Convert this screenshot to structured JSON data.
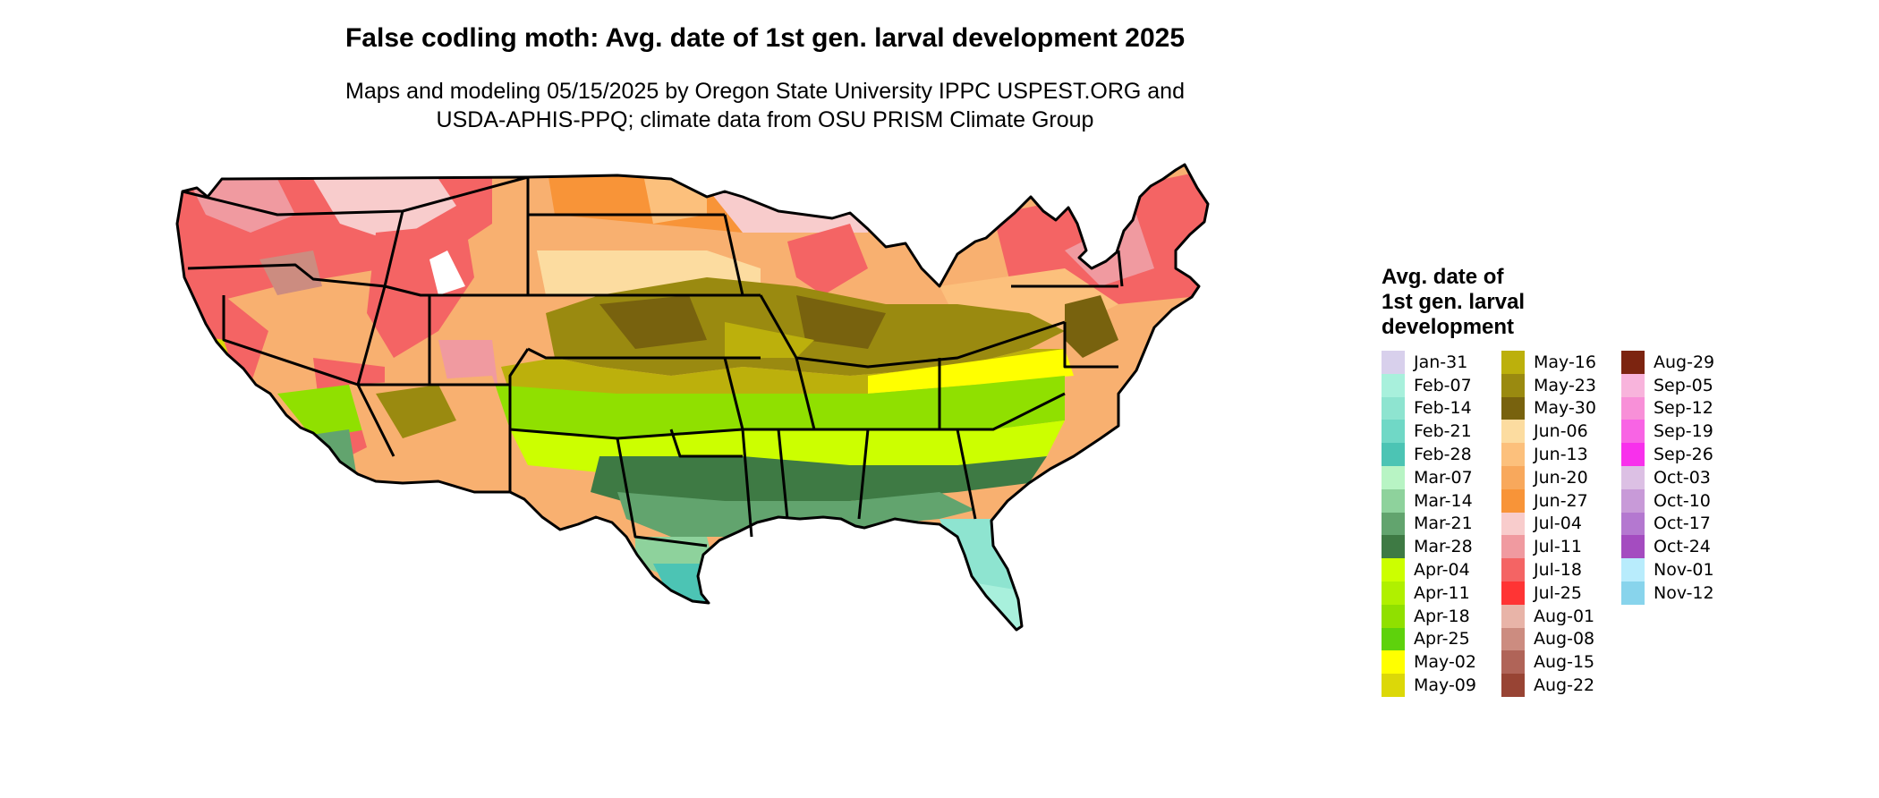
{
  "title": "False codling moth: Avg. date of 1st gen. larval development 2025",
  "subtitle_line1": "Maps and modeling 05/15/2025 by Oregon State University IPPC USPEST.ORG and",
  "subtitle_line2": "USDA-APHIS-PPQ; climate data from OSU PRISM Climate Group",
  "legend": {
    "title_lines": [
      "Avg. date of",
      "1st gen. larval",
      "development"
    ],
    "columns": [
      [
        {
          "label": "Jan-31",
          "color": "#d8d0ec"
        },
        {
          "label": "Feb-07",
          "color": "#a8f0dc"
        },
        {
          "label": "Feb-14",
          "color": "#8ee4d0"
        },
        {
          "label": "Feb-21",
          "color": "#70d8c6"
        },
        {
          "label": "Feb-28",
          "color": "#4cc4b4"
        },
        {
          "label": "Mar-07",
          "color": "#b8f4c4"
        },
        {
          "label": "Mar-14",
          "color": "#8ed29c"
        },
        {
          "label": "Mar-21",
          "color": "#62a46e"
        },
        {
          "label": "Mar-28",
          "color": "#3e7a44"
        },
        {
          "label": "Apr-04",
          "color": "#ccff00"
        },
        {
          "label": "Apr-11",
          "color": "#b0f000"
        },
        {
          "label": "Apr-18",
          "color": "#90e000"
        },
        {
          "label": "Apr-25",
          "color": "#5ed20c"
        },
        {
          "label": "May-02",
          "color": "#ffff00"
        },
        {
          "label": "May-09",
          "color": "#dcd808"
        }
      ],
      [
        {
          "label": "May-16",
          "color": "#bcb00c"
        },
        {
          "label": "May-23",
          "color": "#9a8a10"
        },
        {
          "label": "May-30",
          "color": "#78620e"
        },
        {
          "label": "Jun-06",
          "color": "#fcdca0"
        },
        {
          "label": "Jun-13",
          "color": "#fcc07c"
        },
        {
          "label": "Jun-20",
          "color": "#f8a85c"
        },
        {
          "label": "Jun-27",
          "color": "#f89438"
        },
        {
          "label": "Jul-04",
          "color": "#f8cccc"
        },
        {
          "label": "Jul-11",
          "color": "#f09aa0"
        },
        {
          "label": "Jul-18",
          "color": "#f46464"
        },
        {
          "label": "Jul-25",
          "color": "#ff3434"
        },
        {
          "label": "Aug-01",
          "color": "#e8b4a8"
        },
        {
          "label": "Aug-08",
          "color": "#cc8c80"
        },
        {
          "label": "Aug-15",
          "color": "#b06458"
        },
        {
          "label": "Aug-22",
          "color": "#984434"
        }
      ],
      [
        {
          "label": "Aug-29",
          "color": "#7c2410"
        },
        {
          "label": "Sep-05",
          "color": "#f8b4dc"
        },
        {
          "label": "Sep-12",
          "color": "#f890d8"
        },
        {
          "label": "Sep-19",
          "color": "#f864e4"
        },
        {
          "label": "Sep-26",
          "color": "#f830ec"
        },
        {
          "label": "Oct-03",
          "color": "#dcc0e4"
        },
        {
          "label": "Oct-10",
          "color": "#c89ad8"
        },
        {
          "label": "Oct-17",
          "color": "#b478d0"
        },
        {
          "label": "Oct-24",
          "color": "#a44cc0"
        },
        {
          "label": "Nov-01",
          "color": "#b8ecfc"
        },
        {
          "label": "Nov-12",
          "color": "#88d4ec"
        }
      ]
    ]
  }
}
